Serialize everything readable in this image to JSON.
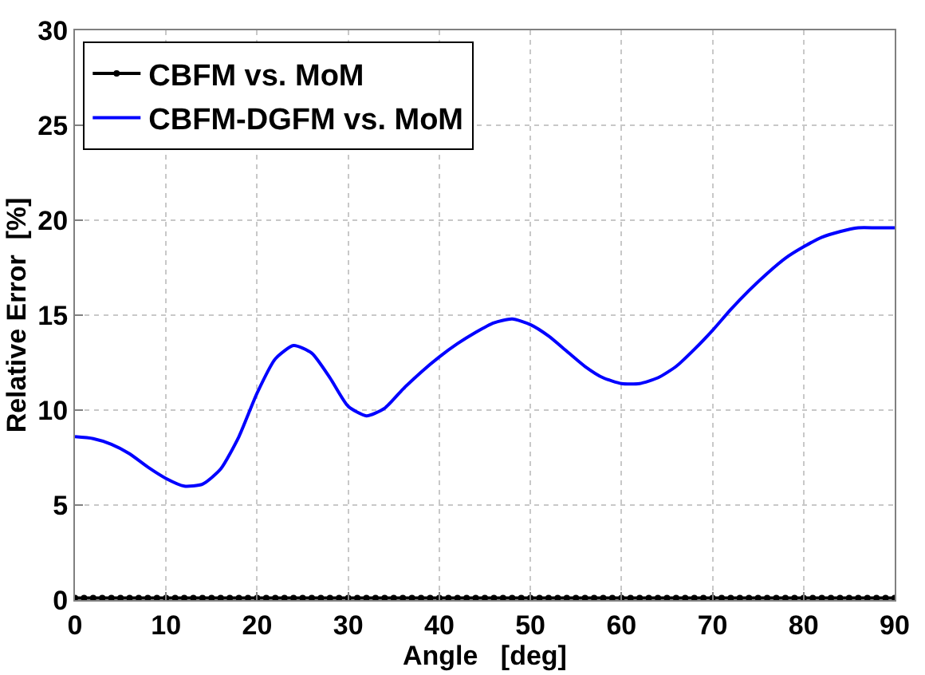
{
  "chart_data": {
    "type": "line",
    "xlabel": "Angle   [deg]",
    "ylabel": "Relative Error  [%]",
    "xlim": [
      0,
      90
    ],
    "xticks": [
      0,
      10,
      20,
      30,
      40,
      50,
      60,
      70,
      80,
      90
    ],
    "ylim": [
      0,
      30
    ],
    "yticks": [
      0,
      5,
      10,
      15,
      20,
      25,
      30
    ],
    "grid": true,
    "legend": "top left",
    "series": [
      {
        "name": "CBFM vs. MoM",
        "color": "#000000",
        "marker": "circle",
        "x": [
          0,
          1,
          2,
          3,
          4,
          5,
          6,
          7,
          8,
          9,
          10,
          11,
          12,
          13,
          14,
          15,
          16,
          17,
          18,
          19,
          20,
          21,
          22,
          23,
          24,
          25,
          26,
          27,
          28,
          29,
          30,
          31,
          32,
          33,
          34,
          35,
          36,
          37,
          38,
          39,
          40,
          41,
          42,
          43,
          44,
          45,
          46,
          47,
          48,
          49,
          50,
          51,
          52,
          53,
          54,
          55,
          56,
          57,
          58,
          59,
          60,
          61,
          62,
          63,
          64,
          65,
          66,
          67,
          68,
          69,
          70,
          71,
          72,
          73,
          74,
          75,
          76,
          77,
          78,
          79,
          80,
          81,
          82,
          83,
          84,
          85,
          86,
          87,
          88,
          89,
          90
        ],
        "values": [
          0.1,
          0.1,
          0.1,
          0.1,
          0.1,
          0.1,
          0.1,
          0.1,
          0.1,
          0.1,
          0.1,
          0.1,
          0.1,
          0.1,
          0.1,
          0.1,
          0.1,
          0.1,
          0.1,
          0.1,
          0.1,
          0.1,
          0.1,
          0.1,
          0.1,
          0.1,
          0.1,
          0.1,
          0.1,
          0.1,
          0.1,
          0.1,
          0.1,
          0.1,
          0.1,
          0.1,
          0.1,
          0.1,
          0.1,
          0.1,
          0.1,
          0.1,
          0.1,
          0.1,
          0.1,
          0.1,
          0.1,
          0.1,
          0.1,
          0.1,
          0.1,
          0.1,
          0.1,
          0.1,
          0.1,
          0.1,
          0.1,
          0.1,
          0.1,
          0.1,
          0.1,
          0.1,
          0.1,
          0.1,
          0.1,
          0.1,
          0.1,
          0.1,
          0.1,
          0.1,
          0.1,
          0.1,
          0.1,
          0.1,
          0.1,
          0.1,
          0.1,
          0.1,
          0.1,
          0.1,
          0.1,
          0.1,
          0.1,
          0.1,
          0.1,
          0.1,
          0.1,
          0.1,
          0.1,
          0.1,
          0.1
        ]
      },
      {
        "name": "CBFM-DGFM vs. MoM",
        "color": "#0000ff",
        "marker": "none",
        "x": [
          0,
          2,
          4,
          6,
          8,
          10,
          12,
          14,
          16,
          18,
          20,
          22,
          24,
          26,
          28,
          30,
          32,
          34,
          36,
          38,
          40,
          42,
          44,
          46,
          48,
          50,
          52,
          54,
          56,
          58,
          60,
          62,
          64,
          66,
          68,
          70,
          72,
          74,
          76,
          78,
          80,
          82,
          84,
          86,
          88,
          90
        ],
        "values": [
          8.6,
          8.5,
          8.2,
          7.7,
          7.0,
          6.4,
          6.0,
          6.1,
          6.9,
          8.6,
          10.9,
          12.7,
          13.4,
          13.0,
          11.7,
          10.2,
          9.7,
          10.1,
          11.1,
          12.0,
          12.8,
          13.5,
          14.1,
          14.6,
          14.8,
          14.5,
          13.9,
          13.1,
          12.3,
          11.7,
          11.4,
          11.4,
          11.7,
          12.3,
          13.2,
          14.2,
          15.3,
          16.3,
          17.2,
          18.0,
          18.6,
          19.1,
          19.4,
          19.6,
          19.6,
          19.6
        ]
      }
    ]
  }
}
